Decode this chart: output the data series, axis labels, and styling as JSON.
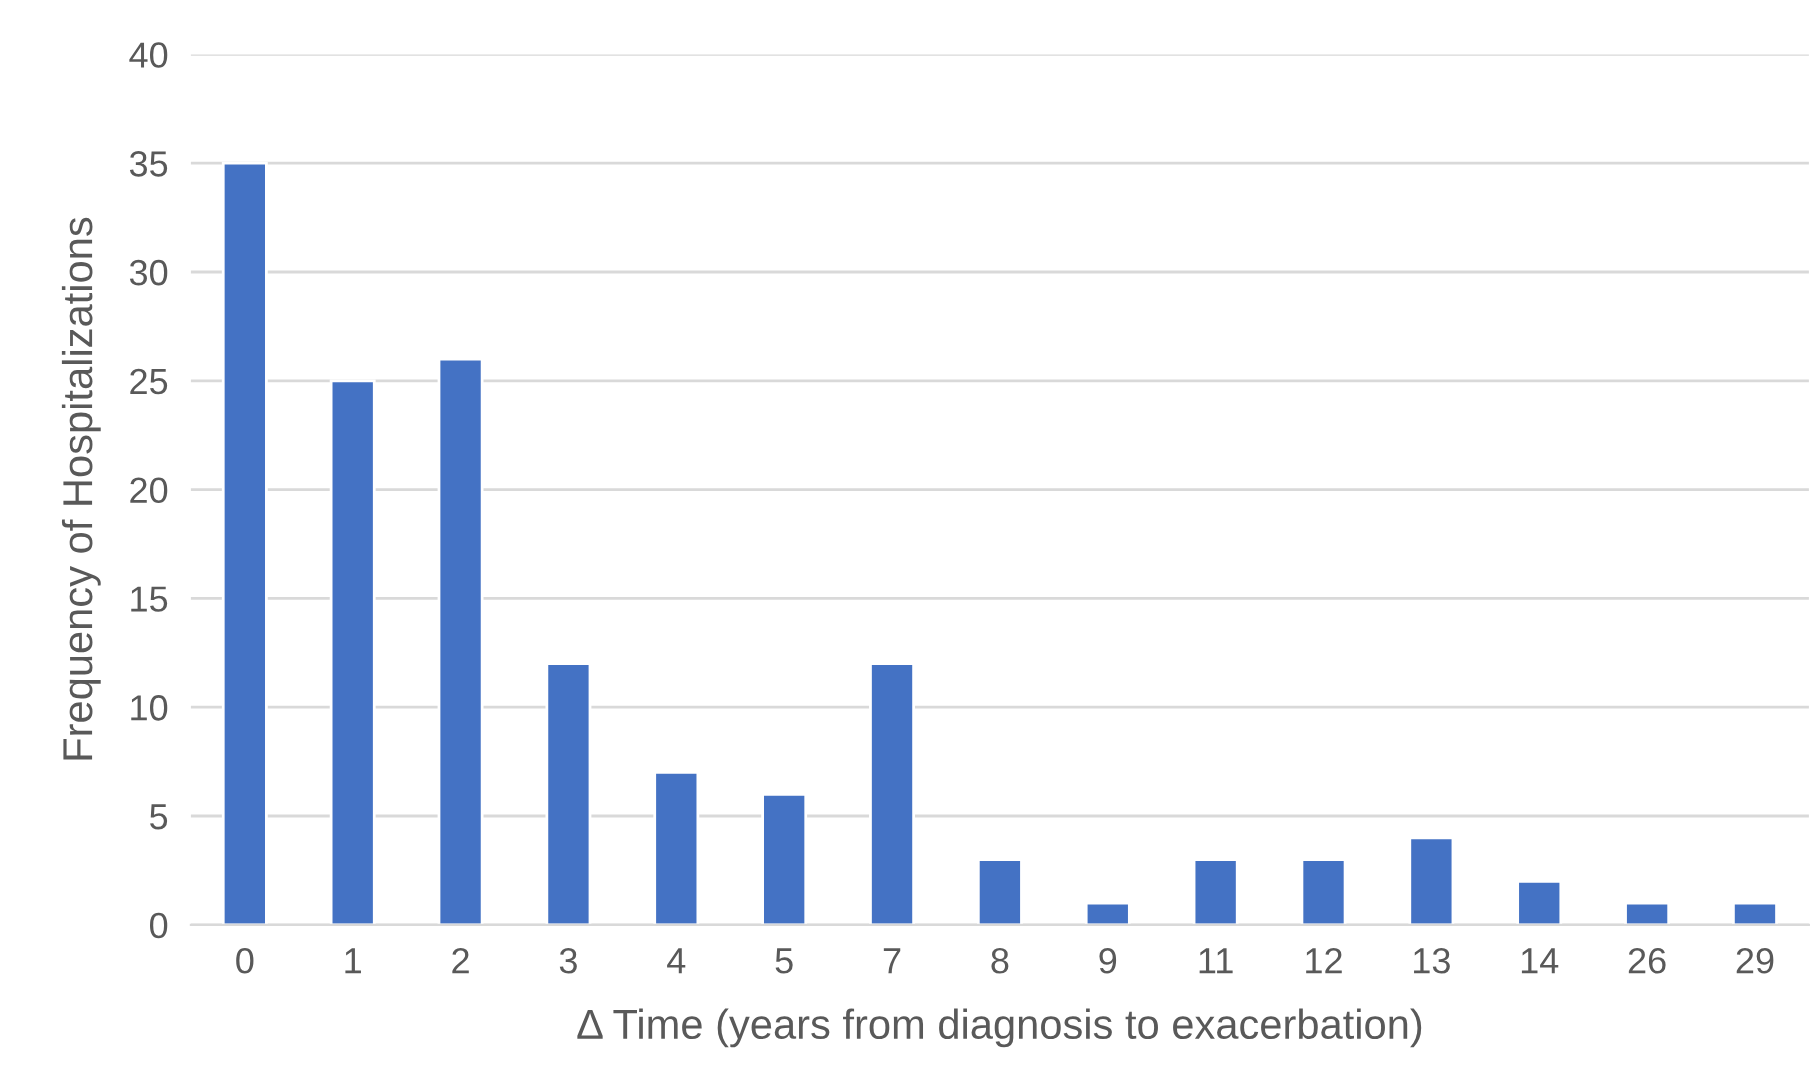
{
  "chart_data": {
    "type": "bar",
    "xlabel": "Δ Time (years from diagnosis to exacerbation)",
    "ylabel": "Frequency of Hospitalizations",
    "categories": [
      "0",
      "1",
      "2",
      "3",
      "4",
      "5",
      "7",
      "8",
      "9",
      "11",
      "12",
      "13",
      "14",
      "26",
      "29"
    ],
    "values": [
      35,
      25,
      26,
      12,
      7,
      6,
      12,
      3,
      1,
      3,
      3,
      4,
      2,
      1,
      1
    ],
    "color": "#4472c4",
    "ylim": [
      0,
      40
    ],
    "yticks": [
      0,
      5,
      10,
      15,
      20,
      25,
      30,
      35,
      40
    ],
    "grid": "y",
    "legend": false
  }
}
